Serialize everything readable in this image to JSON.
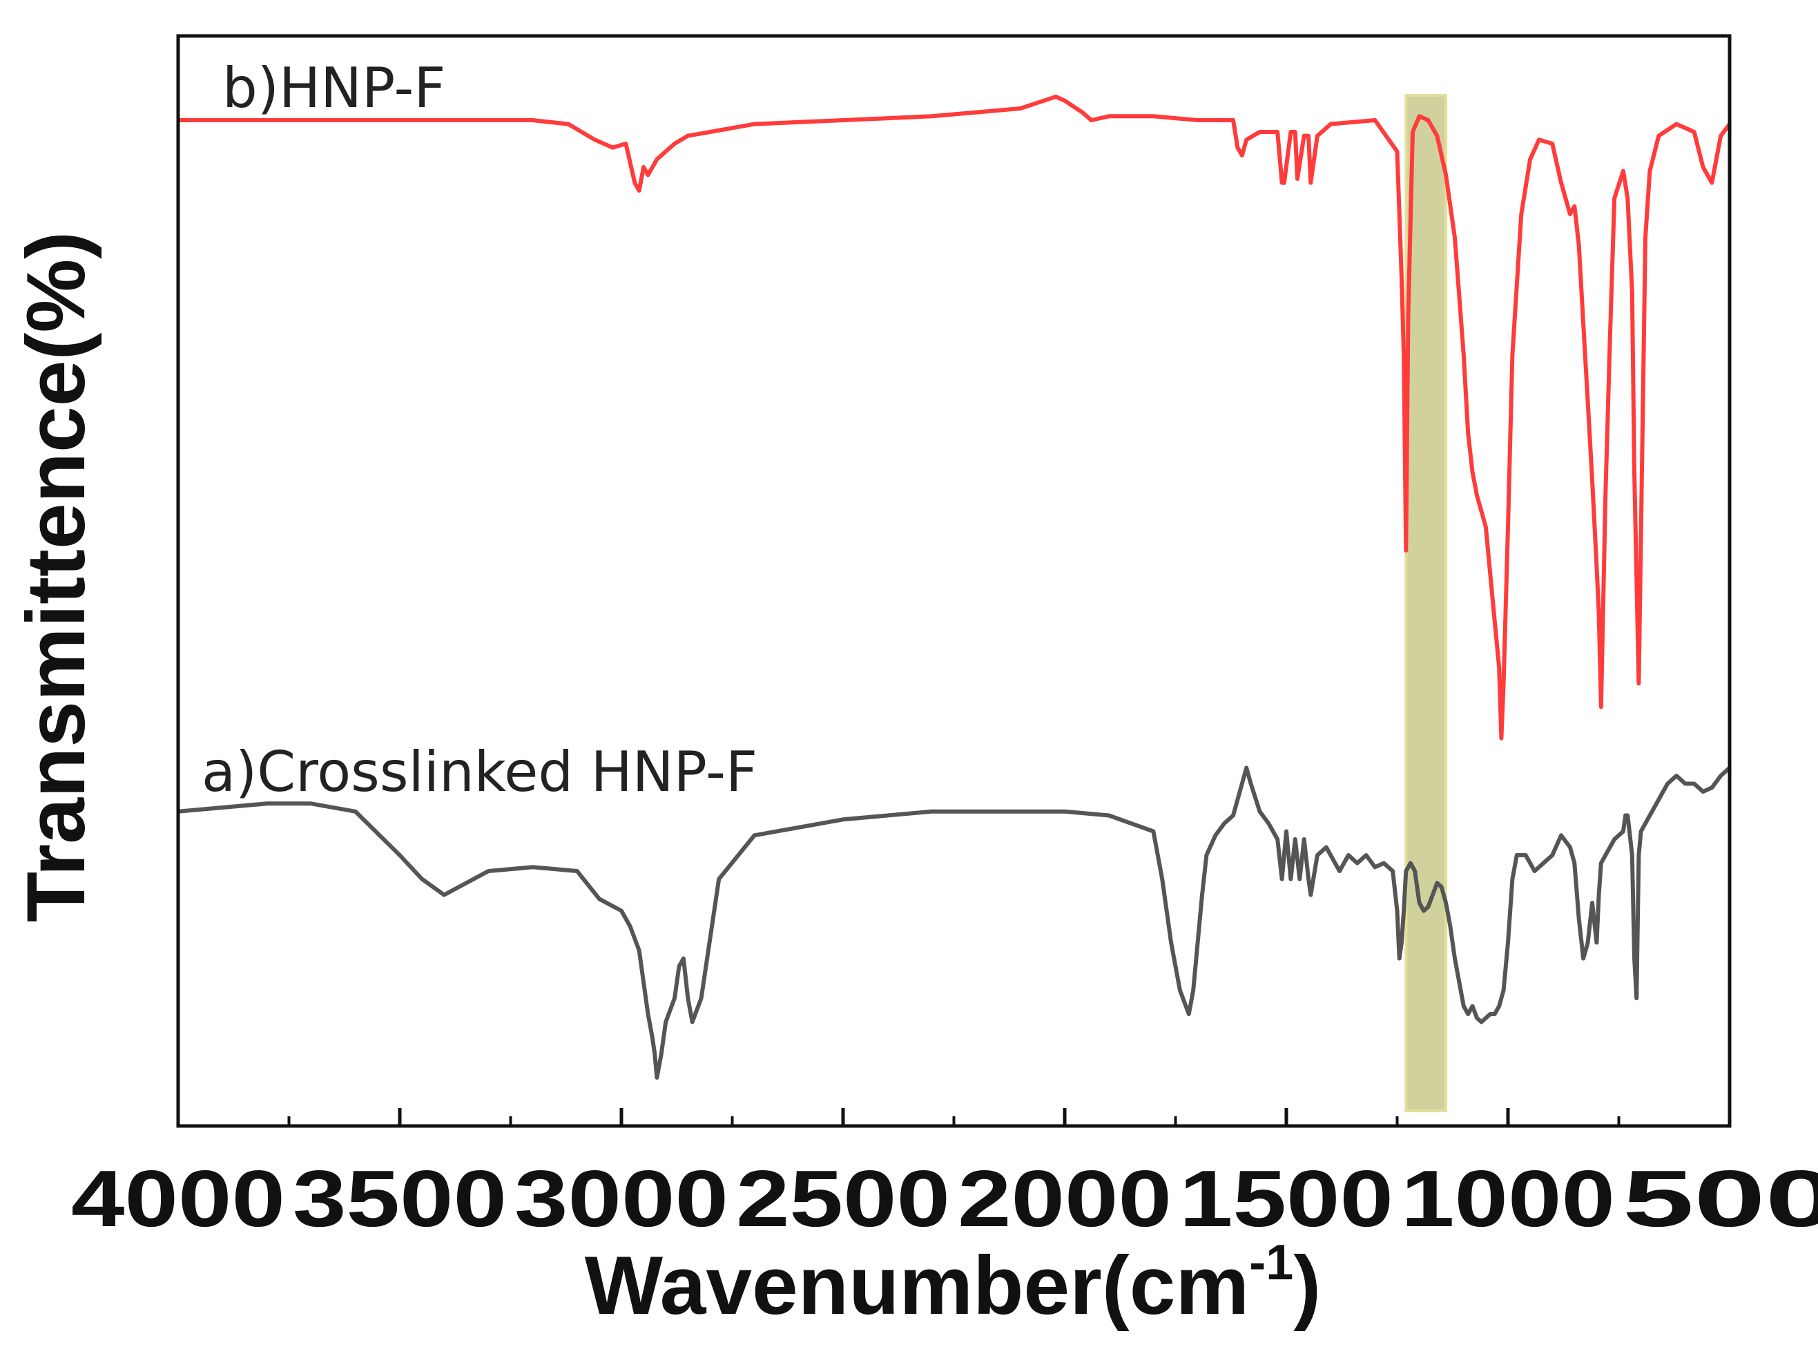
{
  "chart_data": {
    "type": "line",
    "xlabel": "Wavenumber(cm",
    "xlabel_superscript": "-1",
    "xlabel_suffix": ")",
    "ylabel": "Transmittence(%)",
    "xlim": [
      4000,
      500
    ],
    "x_reversed": true,
    "y_ticks_shown": false,
    "grid": false,
    "x_ticks": [
      4000,
      3500,
      3000,
      2500,
      2000,
      1500,
      1000,
      500
    ],
    "highlight_band": {
      "x_from": 1230,
      "x_to": 1140,
      "color": "#b8b86a"
    },
    "series": [
      {
        "name": "b)HNP-F",
        "color": "#ff3b3b",
        "x": [
          4000,
          3200,
          3120,
          3060,
          3020,
          2990,
          2970,
          2960,
          2950,
          2940,
          2920,
          2900,
          2880,
          2850,
          2800,
          2700,
          2500,
          2300,
          2100,
          2020,
          2000,
          1960,
          1940,
          1900,
          1800,
          1700,
          1620,
          1610,
          1600,
          1590,
          1560,
          1520,
          1510,
          1505,
          1490,
          1480,
          1475,
          1460,
          1450,
          1445,
          1430,
          1420,
          1400,
          1300,
          1250,
          1240,
          1235,
          1230,
          1225,
          1215,
          1200,
          1180,
          1160,
          1140,
          1120,
          1100,
          1090,
          1080,
          1070,
          1060,
          1050,
          1040,
          1030,
          1020,
          1015,
          1010,
          1000,
          990,
          970,
          950,
          930,
          900,
          880,
          860,
          850,
          840,
          830,
          820,
          810,
          800,
          795,
          790,
          780,
          770,
          760,
          740,
          730,
          720,
          715,
          705,
          690,
          680,
          660,
          620,
          580,
          560,
          540,
          520,
          500
        ],
        "y": [
          100,
          100,
          99.5,
          97.5,
          96.5,
          97,
          92,
          91,
          94,
          93,
          95,
          96,
          97,
          98,
          98.5,
          99.5,
          100,
          100.5,
          101.5,
          103,
          102.5,
          101,
          100,
          100.5,
          100.5,
          100,
          100,
          96.5,
          95.5,
          97.5,
          98.5,
          98.5,
          92,
          92,
          98.5,
          98.5,
          92.5,
          98,
          98,
          92,
          98,
          98.5,
          99.5,
          100,
          96,
          80,
          70,
          45,
          75,
          98.5,
          100.5,
          100,
          98,
          93,
          85,
          70,
          60,
          55,
          52,
          50,
          48,
          42,
          36,
          30,
          21,
          28,
          48,
          70,
          88,
          95,
          97.5,
          97,
          92,
          88,
          89,
          84,
          74,
          64,
          54,
          43,
          37,
          25,
          52,
          72,
          90,
          93.5,
          90,
          78,
          55,
          28,
          85,
          93.5,
          98,
          99.5,
          98.5,
          94,
          92,
          98,
          99.5
        ]
      },
      {
        "name": "a)Crosslinked HNP-F",
        "color": "#555555",
        "highlight_color": "#9a9a1a",
        "x": [
          4000,
          3900,
          3800,
          3700,
          3600,
          3500,
          3450,
          3400,
          3300,
          3200,
          3100,
          3050,
          3000,
          2980,
          2960,
          2950,
          2940,
          2930,
          2925,
          2920,
          2910,
          2900,
          2880,
          2870,
          2860,
          2850,
          2840,
          2820,
          2780,
          2700,
          2500,
          2300,
          2100,
          2000,
          1900,
          1800,
          1780,
          1760,
          1740,
          1720,
          1710,
          1700,
          1690,
          1680,
          1660,
          1640,
          1620,
          1600,
          1590,
          1580,
          1560,
          1540,
          1520,
          1510,
          1500,
          1490,
          1480,
          1470,
          1460,
          1450,
          1445,
          1430,
          1410,
          1380,
          1360,
          1340,
          1320,
          1300,
          1280,
          1260,
          1250,
          1245,
          1240,
          1235,
          1230,
          1220,
          1210,
          1200,
          1190,
          1180,
          1170,
          1160,
          1150,
          1140,
          1130,
          1120,
          1110,
          1100,
          1090,
          1080,
          1070,
          1060,
          1050,
          1040,
          1030,
          1020,
          1010,
          1000,
          990,
          980,
          960,
          940,
          900,
          880,
          860,
          850,
          840,
          830,
          820,
          810,
          800,
          795,
          790,
          780,
          760,
          750,
          740,
          735,
          730,
          720,
          715,
          710,
          705,
          700,
          690,
          680,
          660,
          640,
          620,
          600,
          580,
          560,
          540,
          520,
          500
        ],
        "y": [
          38.5,
          39,
          39.5,
          39.5,
          38.5,
          33,
          30,
          28,
          31,
          31.5,
          31,
          27.5,
          26,
          24,
          21,
          17,
          13,
          10,
          8,
          5,
          8,
          12,
          15,
          19,
          20,
          15,
          12,
          15,
          30,
          35.5,
          37.5,
          38.5,
          38.5,
          38.5,
          38,
          36,
          30,
          22,
          16,
          13,
          16,
          22,
          28,
          33,
          35.5,
          37,
          38,
          42,
          44,
          42,
          38.5,
          37,
          35,
          30,
          36,
          30,
          35,
          30,
          35,
          30,
          28,
          33,
          34,
          31,
          33,
          32,
          33,
          31.5,
          32,
          31,
          26,
          20,
          22,
          26,
          31,
          32,
          31,
          27,
          26,
          26.5,
          28,
          29.5,
          29,
          27,
          24,
          20,
          17,
          14,
          13,
          14,
          12.5,
          12,
          12.5,
          13,
          13,
          14,
          16,
          22,
          30,
          33,
          33,
          31,
          33,
          35.5,
          34,
          32,
          25,
          20,
          22,
          27,
          22,
          28,
          32,
          33,
          35,
          35.5,
          36,
          38,
          38,
          33,
          20,
          15,
          33,
          36,
          37,
          38,
          40,
          42,
          43,
          42,
          42,
          41,
          41.5,
          43,
          44
        ]
      }
    ]
  }
}
